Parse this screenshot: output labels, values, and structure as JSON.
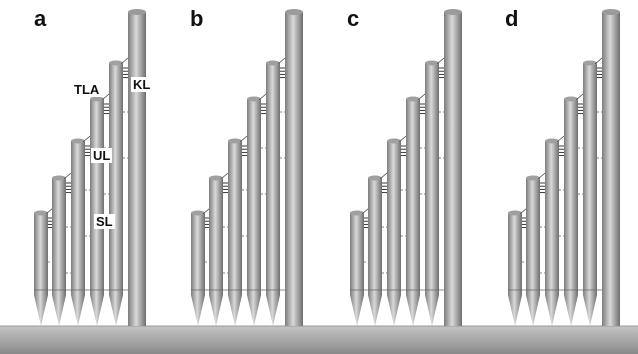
{
  "panels": [
    {
      "label": "a",
      "annotations": {
        "tla": "TLA",
        "kl": "KL",
        "ul": "UL",
        "sl": "SL"
      }
    },
    {
      "label": "b"
    },
    {
      "label": "c"
    },
    {
      "label": "d"
    }
  ],
  "colors": {
    "rod_dark": "#7c7c7c",
    "rod_light": "#d7d7d7",
    "ground_top": "#b9b9b9",
    "ground_bottom": "#8c8c8c",
    "connector": "#222222"
  }
}
